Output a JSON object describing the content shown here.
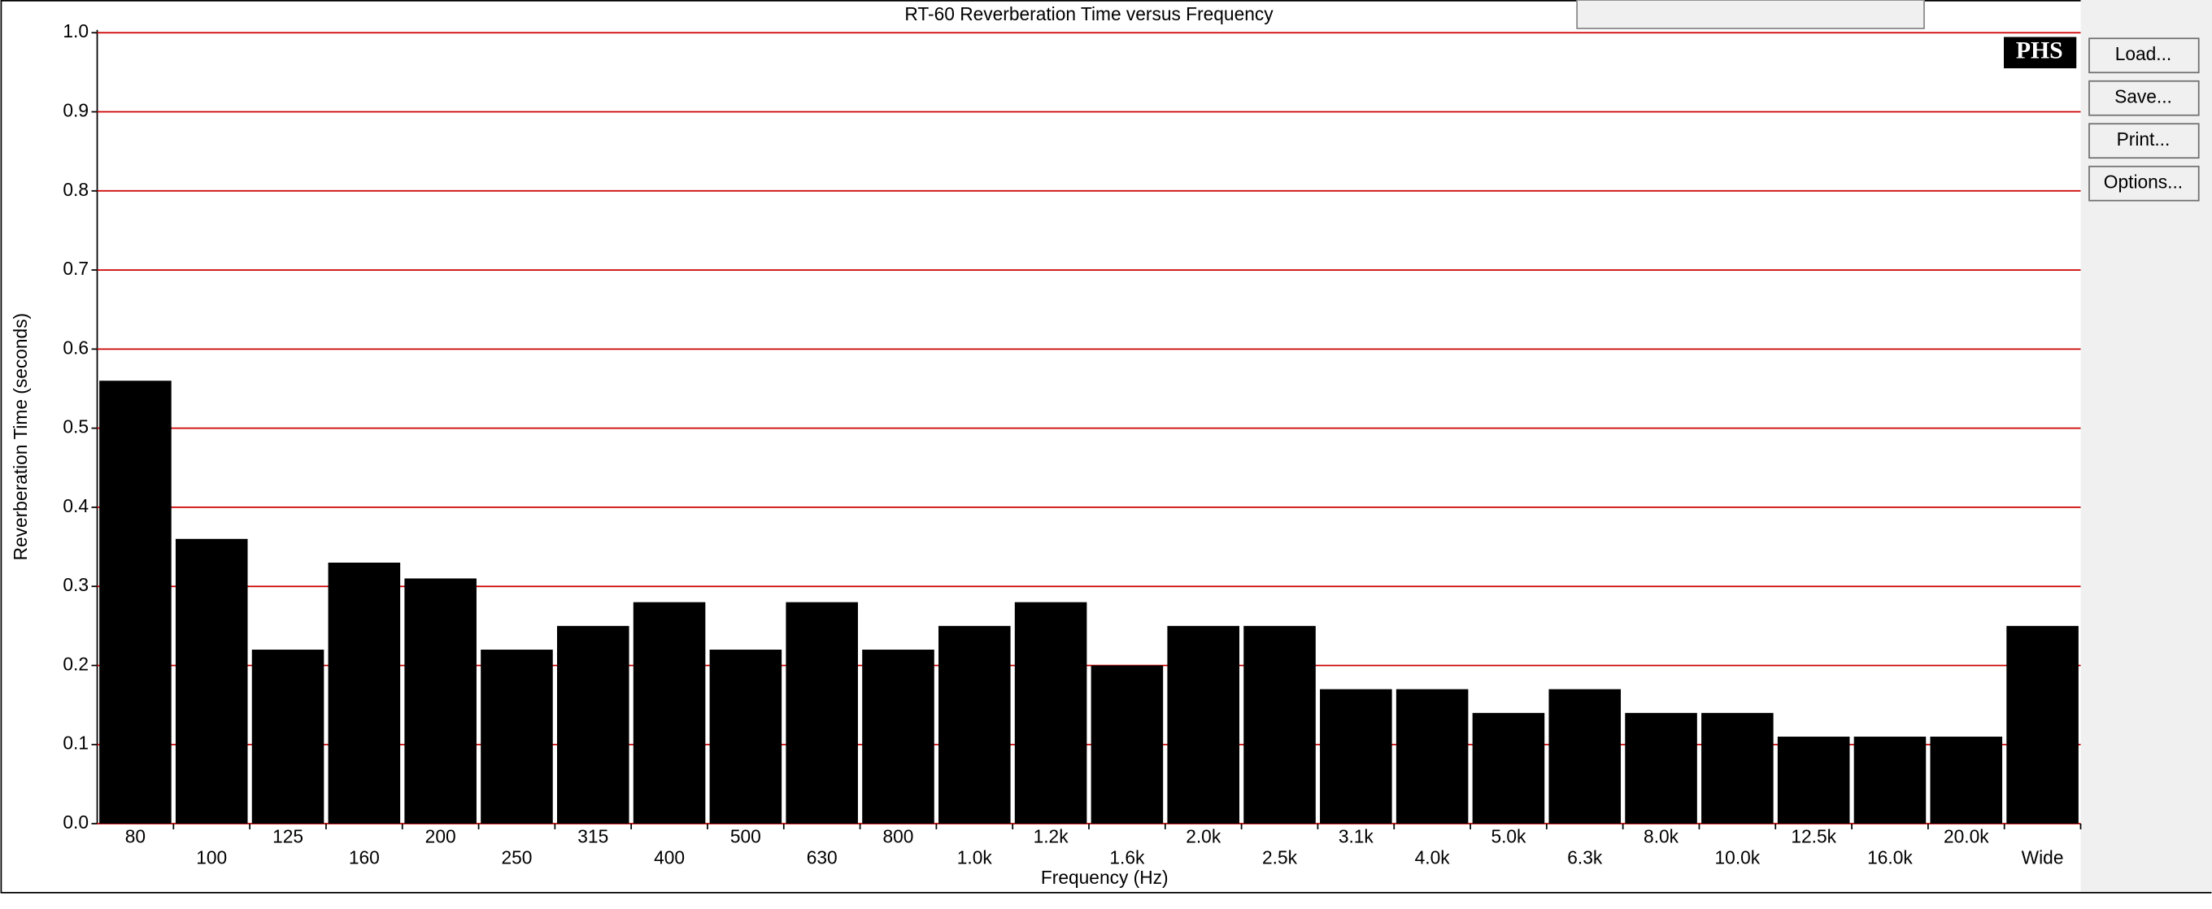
{
  "chart_data": {
    "type": "bar",
    "title": "RT-60 Reverberation Time versus Frequency",
    "x_label": "Frequency (Hz)",
    "y_label": "Reverberation Time (seconds)",
    "categories": [
      "80",
      "100",
      "125",
      "160",
      "200",
      "250",
      "315",
      "400",
      "500",
      "630",
      "800",
      "1.0k",
      "1.2k",
      "1.6k",
      "2.0k",
      "2.5k",
      "3.1k",
      "4.0k",
      "5.0k",
      "6.3k",
      "8.0k",
      "10.0k",
      "12.5k",
      "16.0k",
      "20.0k",
      "Wide"
    ],
    "values": [
      0.56,
      0.36,
      0.22,
      0.33,
      0.31,
      0.22,
      0.25,
      0.28,
      0.22,
      0.28,
      0.22,
      0.25,
      0.28,
      0.2,
      0.25,
      0.25,
      0.17,
      0.17,
      0.14,
      0.17,
      0.14,
      0.14,
      0.11,
      0.11,
      0.11,
      0.25
    ],
    "color": "#000000",
    "grid": true,
    "grid_color": "#cc0000",
    "ylim": [
      0,
      1
    ],
    "yticks": [
      {
        "value": 0,
        "label": "0.0"
      },
      {
        "value": 0.1,
        "label": "0.1"
      },
      {
        "value": 0.2,
        "label": "0.2"
      },
      {
        "value": 0.3,
        "label": "0.3"
      },
      {
        "value": 0.4,
        "label": "0.4"
      },
      {
        "value": 0.5,
        "label": "0.5"
      },
      {
        "value": 0.6,
        "label": "0.6"
      },
      {
        "value": 0.7,
        "label": "0.7"
      },
      {
        "value": 0.8,
        "label": "0.8"
      },
      {
        "value": 0.9,
        "label": "0.9"
      },
      {
        "value": 1,
        "label": "1.0"
      }
    ]
  },
  "logo": "PHS",
  "buttons": [
    "Load...",
    "Save...",
    "Print...",
    "Options..."
  ]
}
